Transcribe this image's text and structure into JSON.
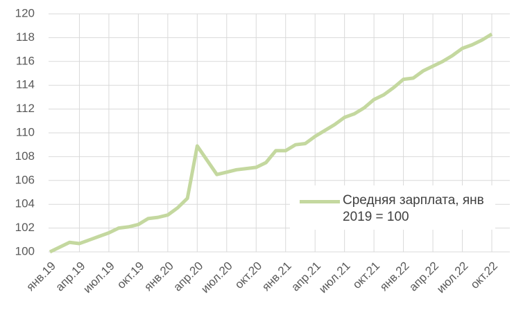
{
  "chart_data": {
    "type": "line",
    "categories": [
      "янв.19",
      null,
      null,
      "апр.19",
      null,
      null,
      "июл.19",
      null,
      null,
      "окт.19",
      null,
      null,
      "янв.20",
      null,
      null,
      "апр.20",
      null,
      null,
      "июл.20",
      null,
      null,
      "окт.20",
      null,
      null,
      "янв.21",
      null,
      null,
      "апр.21",
      null,
      null,
      "июл.21",
      null,
      null,
      "окт.21",
      null,
      null,
      "янв.22",
      null,
      null,
      "апр.22",
      null,
      null,
      "июл.22",
      null,
      null,
      "окт.22"
    ],
    "series": [
      {
        "name": "Средняя зарплата, янв 2019 = 100",
        "color": "#c4d89f",
        "values": [
          100.0,
          100.4,
          100.8,
          100.7,
          101.0,
          101.3,
          101.6,
          102.0,
          102.1,
          102.3,
          102.8,
          102.9,
          103.1,
          103.7,
          104.5,
          108.9,
          107.7,
          106.5,
          106.7,
          106.9,
          107.0,
          107.1,
          107.5,
          108.5,
          108.5,
          109.0,
          109.1,
          109.7,
          110.2,
          110.7,
          111.3,
          111.6,
          112.1,
          112.8,
          113.2,
          113.8,
          114.5,
          114.6,
          115.2,
          115.6,
          116.0,
          116.5,
          117.1,
          117.4,
          117.8,
          118.3
        ]
      }
    ],
    "ylim": [
      100,
      120
    ],
    "yticks": [
      100,
      102,
      104,
      106,
      108,
      110,
      112,
      114,
      116,
      118,
      120
    ],
    "grid": true,
    "legend": "lower right"
  }
}
